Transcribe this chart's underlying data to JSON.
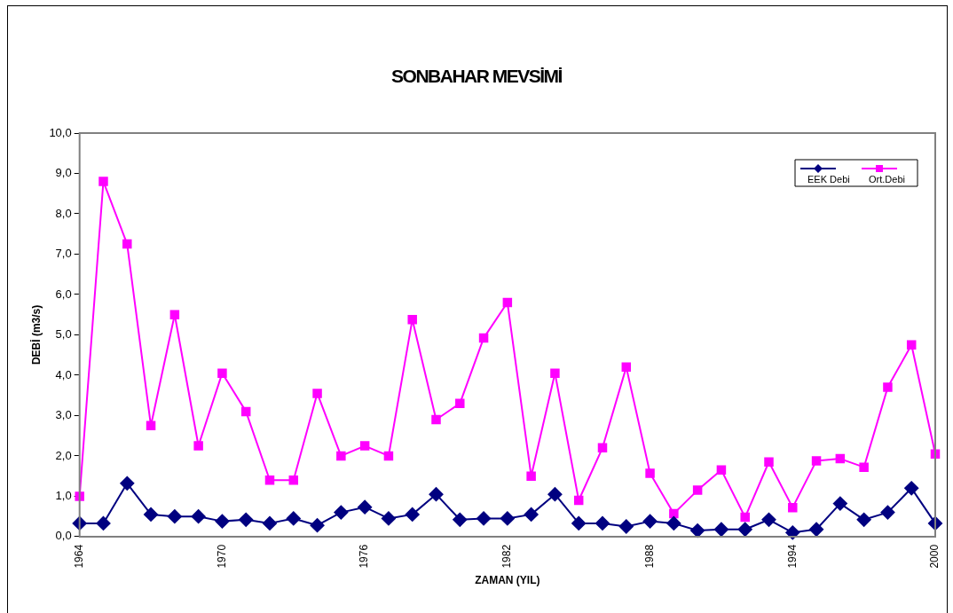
{
  "chart_data": {
    "type": "line",
    "title": "SONBAHAR MEVSİMİ",
    "xlabel": "ZAMAN (YIL)",
    "ylabel": "DEBİ (m3/s)",
    "x": [
      1964,
      1965,
      1966,
      1967,
      1968,
      1969,
      1970,
      1971,
      1972,
      1973,
      1974,
      1975,
      1976,
      1977,
      1978,
      1979,
      1980,
      1981,
      1982,
      1983,
      1984,
      1985,
      1986,
      1987,
      1988,
      1989,
      1990,
      1991,
      1992,
      1993,
      1994,
      1995,
      1996,
      1997,
      1998,
      1999,
      2000
    ],
    "series": [
      {
        "name": "EEK Debi",
        "color": "#000080",
        "marker": "diamond",
        "values": [
          0.33,
          0.33,
          1.32,
          0.55,
          0.5,
          0.5,
          0.38,
          0.42,
          0.33,
          0.45,
          0.28,
          0.6,
          0.73,
          0.45,
          0.55,
          1.05,
          0.42,
          0.45,
          0.45,
          0.55,
          1.05,
          0.33,
          0.33,
          0.25,
          0.38,
          0.33,
          0.15,
          0.18,
          0.18,
          0.42,
          0.1,
          0.18,
          0.82,
          0.42,
          0.6,
          1.2,
          0.33
        ]
      },
      {
        "name": "Ort.Debi",
        "color": "#ff00ff",
        "marker": "square",
        "values": [
          1.0,
          8.8,
          7.25,
          2.75,
          5.5,
          2.25,
          4.05,
          3.1,
          1.4,
          1.4,
          3.55,
          2.0,
          2.25,
          2.0,
          5.38,
          2.9,
          3.3,
          4.92,
          5.8,
          1.5,
          4.05,
          0.9,
          2.2,
          4.2,
          1.57,
          0.57,
          1.15,
          1.65,
          0.48,
          1.85,
          0.72,
          1.88,
          1.93,
          1.72,
          3.7,
          4.75,
          2.05
        ]
      }
    ],
    "xlim": [
      1964,
      2000
    ],
    "xticks": [
      1964,
      1970,
      1976,
      1982,
      1988,
      1994,
      2000
    ],
    "ylim": [
      0,
      10
    ],
    "yticks": [
      {
        "value": 0,
        "label": "0,0"
      },
      {
        "value": 1,
        "label": "1,0"
      },
      {
        "value": 2,
        "label": "2,0"
      },
      {
        "value": 3,
        "label": "3,0"
      },
      {
        "value": 4,
        "label": "4,0"
      },
      {
        "value": 5,
        "label": "5,0"
      },
      {
        "value": 6,
        "label": "6,0"
      },
      {
        "value": 7,
        "label": "7,0"
      },
      {
        "value": 8,
        "label": "8,0"
      },
      {
        "value": 9,
        "label": "9,0"
      },
      {
        "value": 10,
        "label": "10,0"
      }
    ],
    "grid": false,
    "legend": "top right",
    "line_style": "solid"
  }
}
